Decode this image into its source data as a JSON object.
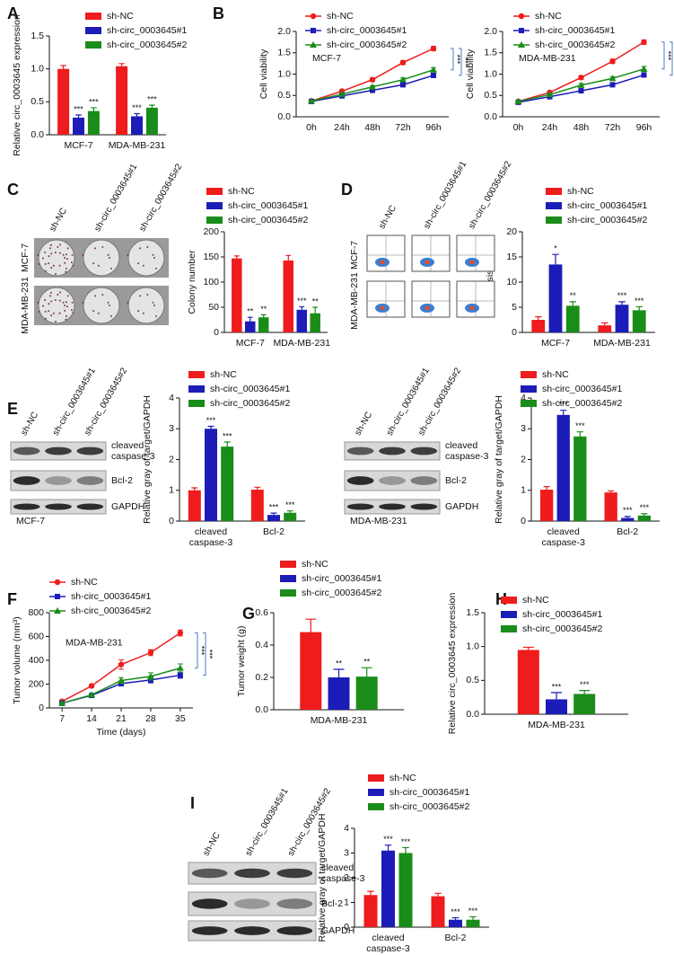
{
  "chart_data": [
    {
      "type": "bar",
      "panel": "A",
      "ylabel": "Relative circ_0003645 expression",
      "categories": [
        "MCF-7",
        "MDA-MB-231"
      ],
      "ylim": [
        0,
        1.5
      ],
      "yticks": [
        {
          "value": 0,
          "label": "0.0"
        },
        0.5,
        {
          "value": 1,
          "label": "1.0"
        },
        1.5
      ],
      "series": [
        {
          "name": "sh-NC",
          "color": "#ee1c1c",
          "values": [
            1.0,
            1.04
          ],
          "errors": [
            0.05,
            0.04
          ],
          "annotations": [
            null,
            null
          ]
        },
        {
          "name": "sh-circ_0003645#1",
          "color": "#1c1cb8",
          "values": [
            0.26,
            0.28
          ],
          "errors": [
            0.04,
            0.04
          ],
          "annotations": [
            "***",
            "***"
          ]
        },
        {
          "name": "sh-circ_0003645#2",
          "color": "#1a8c1a",
          "values": [
            0.36,
            0.41
          ],
          "errors": [
            0.05,
            0.04
          ],
          "annotations": [
            "***",
            "***"
          ]
        }
      ]
    },
    {
      "type": "line",
      "panel": "B",
      "ylabel": "Cell viability",
      "annotation": "MCF-7",
      "categories": [
        "0h",
        "24h",
        "48h",
        "72h",
        "96h"
      ],
      "ylim": [
        0,
        2
      ],
      "yticks": [
        {
          "value": 0,
          "label": "0.0"
        },
        0.5,
        {
          "value": 1,
          "label": "1.0"
        },
        1.5,
        {
          "value": 2,
          "label": "2.0"
        }
      ],
      "significance": [
        "***",
        "***"
      ],
      "series": [
        {
          "name": "sh-NC",
          "color": "#ee1c1c",
          "marker": "circle",
          "values": [
            0.37,
            0.6,
            0.87,
            1.27,
            1.6
          ],
          "errors": [
            0.02,
            0.03,
            0.04,
            0.04,
            0.05
          ]
        },
        {
          "name": "sh-circ_0003645#1",
          "color": "#1c1cb8",
          "marker": "square",
          "values": [
            0.36,
            0.49,
            0.62,
            0.75,
            0.97
          ],
          "errors": [
            0.02,
            0.02,
            0.03,
            0.03,
            0.04
          ]
        },
        {
          "name": "sh-circ_0003645#2",
          "color": "#1a8c1a",
          "marker": "triangle",
          "values": [
            0.37,
            0.53,
            0.7,
            0.87,
            1.1
          ],
          "errors": [
            0.02,
            0.03,
            0.03,
            0.04,
            0.05
          ]
        }
      ]
    },
    {
      "type": "line",
      "ylabel": "Cell viability",
      "annotation": "MDA-MB-231",
      "categories": [
        "0h",
        "24h",
        "48h",
        "72h",
        "96h"
      ],
      "ylim": [
        0,
        2
      ],
      "yticks": [
        {
          "value": 0,
          "label": "0.0"
        },
        0.5,
        {
          "value": 1,
          "label": "1.0"
        },
        1.5,
        {
          "value": 2,
          "label": "2.0"
        }
      ],
      "significance": [
        "***",
        "***"
      ],
      "series": [
        {
          "name": "sh-NC",
          "color": "#ee1c1c",
          "marker": "circle",
          "values": [
            0.36,
            0.57,
            0.92,
            1.3,
            1.75
          ],
          "errors": [
            0.02,
            0.03,
            0.04,
            0.05,
            0.05
          ]
        },
        {
          "name": "sh-circ_0003645#1",
          "color": "#1c1cb8",
          "marker": "square",
          "values": [
            0.34,
            0.47,
            0.61,
            0.75,
            0.98
          ],
          "errors": [
            0.02,
            0.02,
            0.03,
            0.03,
            0.03
          ]
        },
        {
          "name": "sh-circ_0003645#2",
          "color": "#1a8c1a",
          "marker": "triangle",
          "values": [
            0.36,
            0.52,
            0.74,
            0.9,
            1.12
          ],
          "errors": [
            0.02,
            0.03,
            0.04,
            0.04,
            0.06
          ]
        }
      ]
    },
    {
      "type": "bar",
      "panel": "C",
      "ylabel": "Colony number",
      "categories": [
        "MCF-7",
        "MDA-MB-231"
      ],
      "ylim": [
        0,
        200
      ],
      "yticks": [
        0,
        50,
        100,
        150,
        200
      ],
      "series": [
        {
          "name": "sh-NC",
          "color": "#ee1c1c",
          "values": [
            147,
            143
          ],
          "errors": [
            5,
            10
          ],
          "annotations": [
            null,
            null
          ]
        },
        {
          "name": "sh-circ_0003645#1",
          "color": "#1c1cb8",
          "values": [
            22,
            45
          ],
          "errors": [
            8,
            6
          ],
          "annotations": [
            "**",
            "***"
          ]
        },
        {
          "name": "sh-circ_0003645#2",
          "color": "#1a8c1a",
          "values": [
            30,
            38
          ],
          "errors": [
            5,
            12
          ],
          "annotations": [
            "**",
            "**"
          ]
        }
      ]
    },
    {
      "type": "bar",
      "panel": "D",
      "ylabel": "Apoptosis (%)",
      "categories": [
        "MCF-7",
        "MDA-MB-231"
      ],
      "ylim": [
        0,
        20
      ],
      "yticks": [
        0,
        5,
        10,
        15,
        20
      ],
      "series": [
        {
          "name": "sh-NC",
          "color": "#ee1c1c",
          "values": [
            2.5,
            1.4
          ],
          "errors": [
            0.6,
            0.5
          ],
          "annotations": [
            null,
            null
          ]
        },
        {
          "name": "sh-circ_0003645#1",
          "color": "#1c1cb8",
          "values": [
            13.5,
            5.5
          ],
          "errors": [
            2,
            0.6
          ],
          "annotations": [
            "*",
            "***"
          ]
        },
        {
          "name": "sh-circ_0003645#2",
          "color": "#1a8c1a",
          "values": [
            5.3,
            4.4
          ],
          "errors": [
            0.8,
            0.7
          ],
          "annotations": [
            "**",
            "***"
          ]
        }
      ]
    },
    {
      "type": "bar",
      "panel": "E",
      "ylabel": "Relative gray of target/GAPDH",
      "categories": [
        "cleaved caspase-3",
        "Bcl-2"
      ],
      "ylim": [
        0,
        4
      ],
      "yticks": [
        0,
        1,
        2,
        3,
        4
      ],
      "series": [
        {
          "name": "sh-NC",
          "color": "#ee1c1c",
          "values": [
            1.0,
            1.02
          ],
          "errors": [
            0.08,
            0.08
          ],
          "annotations": [
            null,
            null
          ]
        },
        {
          "name": "sh-circ_0003645#1",
          "color": "#1c1cb8",
          "values": [
            3.0,
            0.2
          ],
          "errors": [
            0.08,
            0.06
          ],
          "annotations": [
            "***",
            "***"
          ]
        },
        {
          "name": "sh-circ_0003645#2",
          "color": "#1a8c1a",
          "values": [
            2.42,
            0.27
          ],
          "errors": [
            0.15,
            0.06
          ],
          "annotations": [
            "***",
            "***"
          ]
        }
      ]
    },
    {
      "type": "bar",
      "ylabel": "Relative gray of target/GAPDH",
      "categories": [
        "cleaved caspase-3",
        "Bcl-2"
      ],
      "ylim": [
        0,
        4
      ],
      "yticks": [
        0,
        1,
        2,
        3,
        4
      ],
      "series": [
        {
          "name": "sh-NC",
          "color": "#ee1c1c",
          "values": [
            1.02,
            0.93
          ],
          "errors": [
            0.1,
            0.05
          ],
          "annotations": [
            null,
            null
          ]
        },
        {
          "name": "sh-circ_0003645#1",
          "color": "#1c1cb8",
          "values": [
            3.45,
            0.1
          ],
          "errors": [
            0.15,
            0.05
          ],
          "annotations": [
            "***",
            "***"
          ]
        },
        {
          "name": "sh-circ_0003645#2",
          "color": "#1a8c1a",
          "values": [
            2.75,
            0.18
          ],
          "errors": [
            0.15,
            0.06
          ],
          "annotations": [
            "***",
            "***"
          ]
        }
      ]
    },
    {
      "type": "line",
      "panel": "F",
      "ylabel": "Tumor volume (mm³)",
      "xlabel": "Time (days)",
      "annotation": "MDA-MB-231",
      "x": [
        7,
        14,
        21,
        28,
        35
      ],
      "xlim": [
        4,
        38
      ],
      "xticks": [
        7,
        14,
        21,
        28,
        35
      ],
      "ylim": [
        0,
        800
      ],
      "yticks": [
        0,
        200,
        400,
        600,
        800
      ],
      "significance": [
        "***",
        "***"
      ],
      "series": [
        {
          "name": "sh-NC",
          "color": "#ee1c1c",
          "marker": "circle",
          "values": [
            55,
            185,
            365,
            465,
            630
          ],
          "errors": [
            8,
            12,
            40,
            25,
            25
          ]
        },
        {
          "name": "sh-circ_0003645#1",
          "color": "#1c1cb8",
          "marker": "square",
          "values": [
            40,
            105,
            205,
            235,
            275
          ],
          "errors": [
            6,
            10,
            20,
            25,
            25
          ]
        },
        {
          "name": "sh-circ_0003645#2",
          "color": "#1a8c1a",
          "marker": "triangle",
          "values": [
            40,
            110,
            230,
            265,
            335
          ],
          "errors": [
            6,
            10,
            25,
            30,
            35
          ]
        }
      ]
    },
    {
      "type": "bar",
      "panel": "G",
      "ylabel": "Tumor weight (g)",
      "categories": [
        "MDA-MB-231"
      ],
      "ylim": [
        0,
        0.6
      ],
      "yticks": [
        {
          "value": 0,
          "label": "0.0"
        },
        0.2,
        0.4,
        0.6
      ],
      "series": [
        {
          "name": "sh-NC",
          "color": "#ee1c1c",
          "values": [
            0.48
          ],
          "errors": [
            0.08
          ],
          "annotations": [
            null
          ]
        },
        {
          "name": "sh-circ_0003645#1",
          "color": "#1c1cb8",
          "values": [
            0.2
          ],
          "errors": [
            0.05
          ],
          "annotations": [
            "**"
          ]
        },
        {
          "name": "sh-circ_0003645#2",
          "color": "#1a8c1a",
          "values": [
            0.205
          ],
          "errors": [
            0.055
          ],
          "annotations": [
            "**"
          ]
        }
      ]
    },
    {
      "type": "bar",
      "panel": "H",
      "ylabel": "Relative circ_0003645 expression",
      "categories": [
        "MDA-MB-231"
      ],
      "ylim": [
        0,
        1.5
      ],
      "yticks": [
        {
          "value": 0,
          "label": "0.0"
        },
        0.5,
        {
          "value": 1,
          "label": "1.0"
        },
        1.5
      ],
      "series": [
        {
          "name": "sh-NC",
          "color": "#ee1c1c",
          "values": [
            0.95
          ],
          "errors": [
            0.04
          ],
          "annotations": [
            null
          ]
        },
        {
          "name": "sh-circ_0003645#1",
          "color": "#1c1cb8",
          "values": [
            0.22
          ],
          "errors": [
            0.1
          ],
          "annotations": [
            "***"
          ]
        },
        {
          "name": "sh-circ_0003645#2",
          "color": "#1a8c1a",
          "values": [
            0.3
          ],
          "errors": [
            0.05
          ],
          "annotations": [
            "***"
          ]
        }
      ]
    },
    {
      "type": "bar",
      "panel": "I",
      "ylabel": "Relative gray of target/GAPDH",
      "categories": [
        "cleaved caspase-3",
        "Bcl-2"
      ],
      "ylim": [
        0,
        4
      ],
      "yticks": [
        0,
        1,
        2,
        3,
        4
      ],
      "series": [
        {
          "name": "sh-NC",
          "color": "#ee1c1c",
          "values": [
            1.3,
            1.25
          ],
          "errors": [
            0.15,
            0.12
          ],
          "annotations": [
            null,
            null
          ]
        },
        {
          "name": "sh-circ_0003645#1",
          "color": "#1c1cb8",
          "values": [
            3.1,
            0.3
          ],
          "errors": [
            0.22,
            0.08
          ],
          "annotations": [
            "***",
            "***"
          ]
        },
        {
          "name": "sh-circ_0003645#2",
          "color": "#1a8c1a",
          "values": [
            3.0,
            0.3
          ],
          "errors": [
            0.22,
            0.12
          ],
          "annotations": [
            "***",
            "***"
          ]
        }
      ]
    }
  ],
  "blots": [
    {
      "kind": "plates",
      "lanes": [
        "sh-NC",
        "sh-circ_0003645#1",
        "sh-circ_0003645#2"
      ],
      "rows": [
        "MCF-7",
        "MDA-MB-231"
      ]
    },
    {
      "kind": "flow",
      "lanes": [
        "sh-NC",
        "sh-circ_0003645#1",
        "sh-circ_0003645#2"
      ],
      "rows": [
        "MCF-7",
        "MDA-MB-231"
      ]
    },
    {
      "kind": "western",
      "lanes": [
        "sh-NC",
        "sh-circ_0003645#1",
        "sh-circ_0003645#2"
      ],
      "bands": [
        "cleaved caspase-3",
        "Bcl-2",
        "GAPDH"
      ],
      "caption": "MCF-7"
    },
    {
      "kind": "western",
      "lanes": [
        "sh-NC",
        "sh-circ_0003645#1",
        "sh-circ_0003645#2"
      ],
      "bands": [
        "cleaved caspase-3",
        "Bcl-2",
        "GAPDH"
      ],
      "caption": "MDA-MB-231"
    },
    {
      "kind": "western",
      "lanes": [
        "sh-NC",
        "sh-circ_0003645#1",
        "sh-circ_0003645#2"
      ],
      "bands": [
        "cleaved caspase-3",
        "Bcl-2",
        "GAPDH"
      ]
    }
  ]
}
